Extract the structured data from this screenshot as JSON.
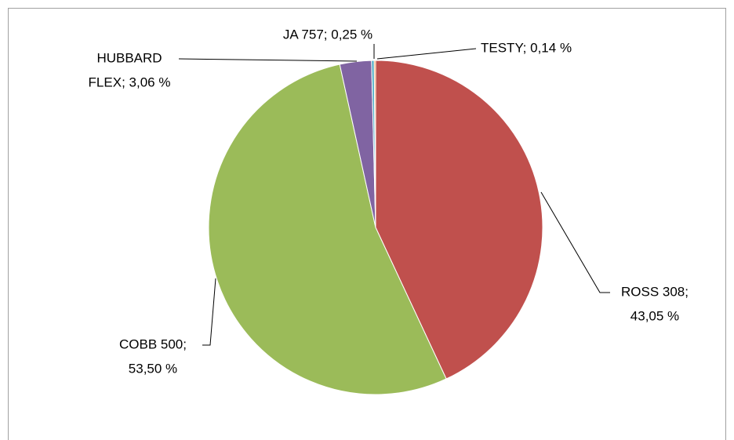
{
  "chart_data": {
    "type": "pie",
    "categories": [
      "ROSS 308",
      "COBB 500",
      "HUBBARD FLEX",
      "JA 757",
      "TESTY"
    ],
    "values": [
      43.05,
      53.5,
      3.06,
      0.25,
      0.14
    ],
    "value_labels": [
      [
        "ROSS 308;",
        "43,05 %"
      ],
      [
        "COBB 500;",
        "53,50 %"
      ],
      [
        "HUBBARD",
        "FLEX; 3,06 %"
      ],
      [
        "JA 757; 0,25 %"
      ],
      [
        "TESTY; 0,14 %"
      ]
    ],
    "colors": [
      "#c0504d",
      "#9bbb59",
      "#8064a2",
      "#4bacc6",
      "#f79646"
    ]
  }
}
